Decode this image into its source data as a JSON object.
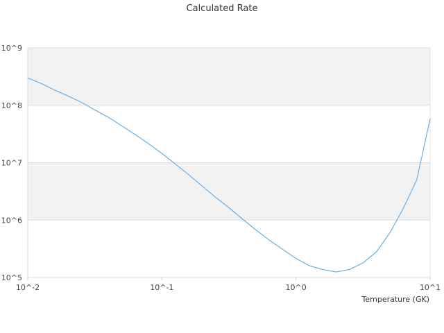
{
  "chart_data": {
    "type": "line",
    "title": "Calculated Rate",
    "xlabel": "Temperature (GK)",
    "ylabel": "",
    "x_scale": "log",
    "y_scale": "log",
    "xlim": [
      0.01,
      10
    ],
    "ylim": [
      100000,
      1000000000
    ],
    "x_ticks": [
      {
        "value": 0.01,
        "label": "10^-2"
      },
      {
        "value": 0.1,
        "label": "10^-1"
      },
      {
        "value": 1,
        "label": "10^0"
      },
      {
        "value": 10,
        "label": "10^1"
      }
    ],
    "y_ticks": [
      {
        "value": 100000,
        "label": "10^5"
      },
      {
        "value": 1000000,
        "label": "10^6"
      },
      {
        "value": 10000000,
        "label": "10^7"
      },
      {
        "value": 100000000,
        "label": "10^8"
      },
      {
        "value": 1000000000,
        "label": "10^9"
      }
    ],
    "banded_background": true,
    "band_color": "#f2f2f2",
    "line_color": "#6aaee6",
    "legend": "none",
    "series": [
      {
        "x": [
          0.01,
          0.0126,
          0.0158,
          0.02,
          0.0251,
          0.0316,
          0.0398,
          0.0501,
          0.0631,
          0.0794,
          0.1,
          0.126,
          0.158,
          0.2,
          0.251,
          0.316,
          0.398,
          0.501,
          0.631,
          0.794,
          1.0,
          1.259,
          1.585,
          1.995,
          2.512,
          3.162,
          3.981,
          5.012,
          6.31,
          7.943,
          10.0
        ],
        "y": [
          300000000,
          240000000,
          185000000,
          145000000,
          113000000,
          83000000,
          62000000,
          44000000,
          31000000,
          21500000,
          14500000,
          9500000,
          6200000,
          3900000,
          2500000,
          1650000,
          1050000,
          680000,
          450000,
          310000,
          215000,
          160000,
          138000,
          125000,
          138000,
          180000,
          280000,
          600000,
          1600000,
          5000000,
          58000000
        ]
      }
    ]
  }
}
